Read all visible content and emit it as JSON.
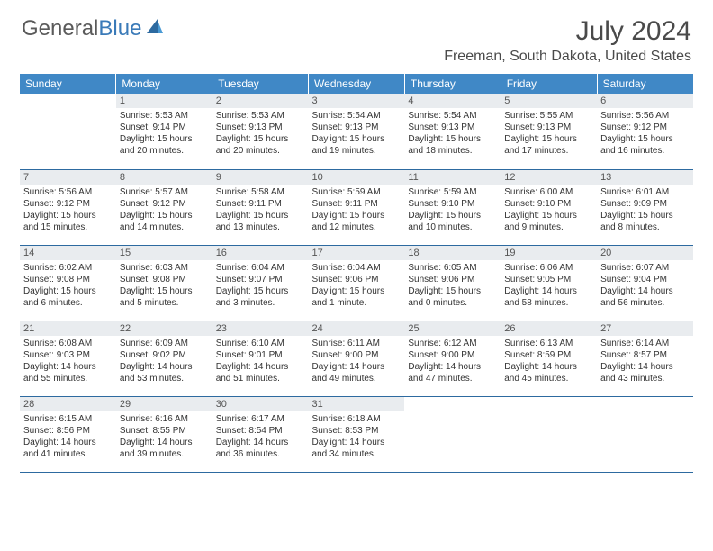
{
  "logo": {
    "text1": "General",
    "text2": "Blue"
  },
  "title": "July 2024",
  "location": "Freeman, South Dakota, United States",
  "colors": {
    "header_bg": "#4088c6",
    "header_text": "#ffffff",
    "daynum_bg": "#e9ecef",
    "border": "#2d6aa0",
    "logo_gray": "#5a5a5a",
    "logo_blue": "#3a7ab8"
  },
  "weekdays": [
    "Sunday",
    "Monday",
    "Tuesday",
    "Wednesday",
    "Thursday",
    "Friday",
    "Saturday"
  ],
  "weeks": [
    [
      {
        "n": "",
        "empty": true
      },
      {
        "n": "1",
        "sunrise": "Sunrise: 5:53 AM",
        "sunset": "Sunset: 9:14 PM",
        "day1": "Daylight: 15 hours",
        "day2": "and 20 minutes."
      },
      {
        "n": "2",
        "sunrise": "Sunrise: 5:53 AM",
        "sunset": "Sunset: 9:13 PM",
        "day1": "Daylight: 15 hours",
        "day2": "and 20 minutes."
      },
      {
        "n": "3",
        "sunrise": "Sunrise: 5:54 AM",
        "sunset": "Sunset: 9:13 PM",
        "day1": "Daylight: 15 hours",
        "day2": "and 19 minutes."
      },
      {
        "n": "4",
        "sunrise": "Sunrise: 5:54 AM",
        "sunset": "Sunset: 9:13 PM",
        "day1": "Daylight: 15 hours",
        "day2": "and 18 minutes."
      },
      {
        "n": "5",
        "sunrise": "Sunrise: 5:55 AM",
        "sunset": "Sunset: 9:13 PM",
        "day1": "Daylight: 15 hours",
        "day2": "and 17 minutes."
      },
      {
        "n": "6",
        "sunrise": "Sunrise: 5:56 AM",
        "sunset": "Sunset: 9:12 PM",
        "day1": "Daylight: 15 hours",
        "day2": "and 16 minutes."
      }
    ],
    [
      {
        "n": "7",
        "sunrise": "Sunrise: 5:56 AM",
        "sunset": "Sunset: 9:12 PM",
        "day1": "Daylight: 15 hours",
        "day2": "and 15 minutes."
      },
      {
        "n": "8",
        "sunrise": "Sunrise: 5:57 AM",
        "sunset": "Sunset: 9:12 PM",
        "day1": "Daylight: 15 hours",
        "day2": "and 14 minutes."
      },
      {
        "n": "9",
        "sunrise": "Sunrise: 5:58 AM",
        "sunset": "Sunset: 9:11 PM",
        "day1": "Daylight: 15 hours",
        "day2": "and 13 minutes."
      },
      {
        "n": "10",
        "sunrise": "Sunrise: 5:59 AM",
        "sunset": "Sunset: 9:11 PM",
        "day1": "Daylight: 15 hours",
        "day2": "and 12 minutes."
      },
      {
        "n": "11",
        "sunrise": "Sunrise: 5:59 AM",
        "sunset": "Sunset: 9:10 PM",
        "day1": "Daylight: 15 hours",
        "day2": "and 10 minutes."
      },
      {
        "n": "12",
        "sunrise": "Sunrise: 6:00 AM",
        "sunset": "Sunset: 9:10 PM",
        "day1": "Daylight: 15 hours",
        "day2": "and 9 minutes."
      },
      {
        "n": "13",
        "sunrise": "Sunrise: 6:01 AM",
        "sunset": "Sunset: 9:09 PM",
        "day1": "Daylight: 15 hours",
        "day2": "and 8 minutes."
      }
    ],
    [
      {
        "n": "14",
        "sunrise": "Sunrise: 6:02 AM",
        "sunset": "Sunset: 9:08 PM",
        "day1": "Daylight: 15 hours",
        "day2": "and 6 minutes."
      },
      {
        "n": "15",
        "sunrise": "Sunrise: 6:03 AM",
        "sunset": "Sunset: 9:08 PM",
        "day1": "Daylight: 15 hours",
        "day2": "and 5 minutes."
      },
      {
        "n": "16",
        "sunrise": "Sunrise: 6:04 AM",
        "sunset": "Sunset: 9:07 PM",
        "day1": "Daylight: 15 hours",
        "day2": "and 3 minutes."
      },
      {
        "n": "17",
        "sunrise": "Sunrise: 6:04 AM",
        "sunset": "Sunset: 9:06 PM",
        "day1": "Daylight: 15 hours",
        "day2": "and 1 minute."
      },
      {
        "n": "18",
        "sunrise": "Sunrise: 6:05 AM",
        "sunset": "Sunset: 9:06 PM",
        "day1": "Daylight: 15 hours",
        "day2": "and 0 minutes."
      },
      {
        "n": "19",
        "sunrise": "Sunrise: 6:06 AM",
        "sunset": "Sunset: 9:05 PM",
        "day1": "Daylight: 14 hours",
        "day2": "and 58 minutes."
      },
      {
        "n": "20",
        "sunrise": "Sunrise: 6:07 AM",
        "sunset": "Sunset: 9:04 PM",
        "day1": "Daylight: 14 hours",
        "day2": "and 56 minutes."
      }
    ],
    [
      {
        "n": "21",
        "sunrise": "Sunrise: 6:08 AM",
        "sunset": "Sunset: 9:03 PM",
        "day1": "Daylight: 14 hours",
        "day2": "and 55 minutes."
      },
      {
        "n": "22",
        "sunrise": "Sunrise: 6:09 AM",
        "sunset": "Sunset: 9:02 PM",
        "day1": "Daylight: 14 hours",
        "day2": "and 53 minutes."
      },
      {
        "n": "23",
        "sunrise": "Sunrise: 6:10 AM",
        "sunset": "Sunset: 9:01 PM",
        "day1": "Daylight: 14 hours",
        "day2": "and 51 minutes."
      },
      {
        "n": "24",
        "sunrise": "Sunrise: 6:11 AM",
        "sunset": "Sunset: 9:00 PM",
        "day1": "Daylight: 14 hours",
        "day2": "and 49 minutes."
      },
      {
        "n": "25",
        "sunrise": "Sunrise: 6:12 AM",
        "sunset": "Sunset: 9:00 PM",
        "day1": "Daylight: 14 hours",
        "day2": "and 47 minutes."
      },
      {
        "n": "26",
        "sunrise": "Sunrise: 6:13 AM",
        "sunset": "Sunset: 8:59 PM",
        "day1": "Daylight: 14 hours",
        "day2": "and 45 minutes."
      },
      {
        "n": "27",
        "sunrise": "Sunrise: 6:14 AM",
        "sunset": "Sunset: 8:57 PM",
        "day1": "Daylight: 14 hours",
        "day2": "and 43 minutes."
      }
    ],
    [
      {
        "n": "28",
        "sunrise": "Sunrise: 6:15 AM",
        "sunset": "Sunset: 8:56 PM",
        "day1": "Daylight: 14 hours",
        "day2": "and 41 minutes."
      },
      {
        "n": "29",
        "sunrise": "Sunrise: 6:16 AM",
        "sunset": "Sunset: 8:55 PM",
        "day1": "Daylight: 14 hours",
        "day2": "and 39 minutes."
      },
      {
        "n": "30",
        "sunrise": "Sunrise: 6:17 AM",
        "sunset": "Sunset: 8:54 PM",
        "day1": "Daylight: 14 hours",
        "day2": "and 36 minutes."
      },
      {
        "n": "31",
        "sunrise": "Sunrise: 6:18 AM",
        "sunset": "Sunset: 8:53 PM",
        "day1": "Daylight: 14 hours",
        "day2": "and 34 minutes."
      },
      {
        "n": "",
        "empty": true
      },
      {
        "n": "",
        "empty": true
      },
      {
        "n": "",
        "empty": true
      }
    ]
  ]
}
